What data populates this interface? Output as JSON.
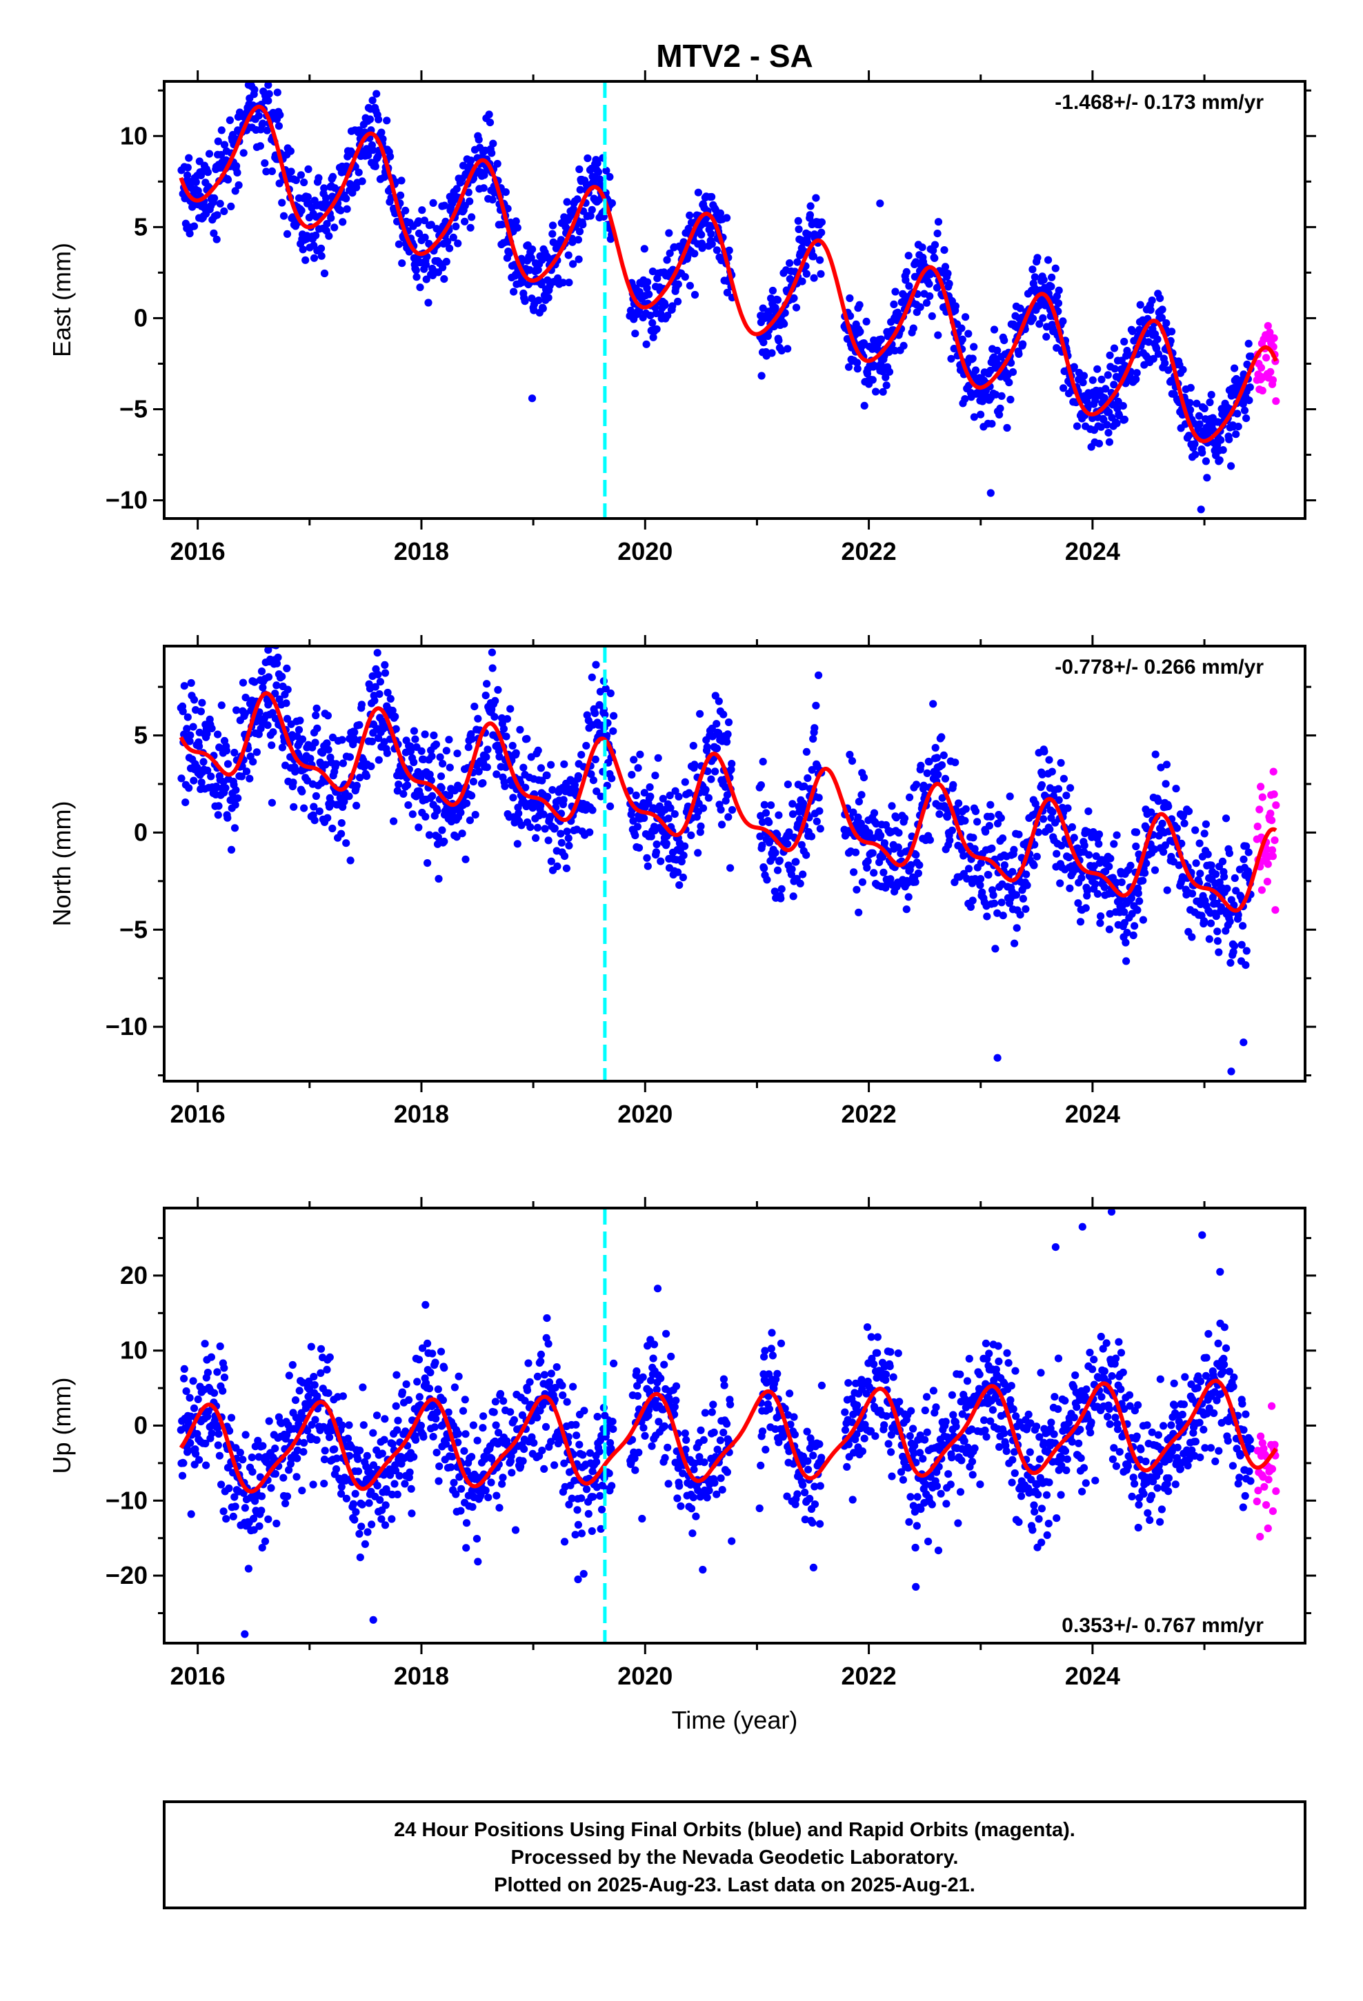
{
  "title": "MTV2 - SA",
  "xlabel": "Time (year)",
  "footer": {
    "line1": "24 Hour Positions Using Final Orbits (blue) and Rapid Orbits (magenta).",
    "line2": "Processed by the Nevada Geodetic Laboratory.",
    "line3": "Plotted on 2025-Aug-23. Last data on 2025-Aug-21."
  },
  "colors": {
    "final_orbits": "#0000ff",
    "rapid_orbits": "#ff00ff",
    "model_fit": "#ff0000",
    "event_line": "#00ffff"
  },
  "chart_data": [
    {
      "type": "scatter",
      "component": "east",
      "ylabel": "East (mm)",
      "rate_label": "-1.468+/- 0.173 mm/yr",
      "rate_position": "top-right",
      "xlim": [
        2015.7,
        2025.9
      ],
      "ylim": [
        -11,
        13
      ],
      "x_ticks": [
        2016,
        2018,
        2020,
        2022,
        2024
      ],
      "x_tick_labels": [
        "2016",
        "2018",
        "2020",
        "2022",
        "2024"
      ],
      "y_ticks": [
        -10,
        -5,
        0,
        5,
        10
      ],
      "y_tick_labels": [
        "−10",
        "−5",
        "0",
        "5",
        "10"
      ],
      "event_line_x": 2019.64,
      "grid": false,
      "model": {
        "trend_mm_per_yr": -1.468,
        "offset_mm": 3.3,
        "annual_amplitude_mm": 2.9,
        "annual_peak_year_fraction": 0.53,
        "semiannual_amplitude_mm": 0.45,
        "semiannual_peak_year_fraction": 0.1
      },
      "residual_scatter_mm": 1.1,
      "final_orbits_range": [
        2015.85,
        2025.42
      ],
      "rapid_orbits_range": [
        2025.47,
        2025.64
      ],
      "data_gaps": [
        [
          2019.72,
          2019.86
        ],
        [
          2020.78,
          2021.02
        ],
        [
          2021.58,
          2021.78
        ]
      ],
      "outliers": [
        {
          "x": 2016.63,
          "y": 12.8
        },
        {
          "x": 2016.64,
          "y": 10.7
        },
        {
          "x": 2022.1,
          "y": 6.3
        },
        {
          "x": 2018.99,
          "y": -4.4
        },
        {
          "x": 2023.09,
          "y": -9.6
        },
        {
          "x": 2024.97,
          "y": -10.5
        }
      ]
    },
    {
      "type": "scatter",
      "component": "north",
      "ylabel": "North (mm)",
      "rate_label": "-0.778+/- 0.266 mm/yr",
      "rate_position": "top-right",
      "xlim": [
        2015.7,
        2025.9
      ],
      "ylim": [
        -12.8,
        9.6
      ],
      "x_ticks": [
        2016,
        2018,
        2020,
        2022,
        2024
      ],
      "x_tick_labels": [
        "2016",
        "2018",
        "2020",
        "2022",
        "2024"
      ],
      "y_ticks": [
        -10,
        -5,
        0,
        5
      ],
      "y_tick_labels": [
        "−10",
        "−5",
        "0",
        "5"
      ],
      "event_line_x": 2019.64,
      "grid": false,
      "model": {
        "trend_mm_per_yr": -0.778,
        "offset_mm": 1.9,
        "annual_amplitude_mm": 1.9,
        "annual_peak_year_fraction": 0.65,
        "semiannual_amplitude_mm": 0.8,
        "semiannual_peak_year_fraction": 0.6
      },
      "residual_scatter_mm": 1.5,
      "final_orbits_range": [
        2015.85,
        2025.42
      ],
      "rapid_orbits_range": [
        2025.47,
        2025.64
      ],
      "data_gaps": [
        [
          2019.72,
          2019.86
        ],
        [
          2020.78,
          2021.02
        ],
        [
          2021.58,
          2021.78
        ]
      ],
      "outliers": [
        {
          "x": 2016.63,
          "y": 9.4
        },
        {
          "x": 2016.64,
          "y": 8.8
        },
        {
          "x": 2021.55,
          "y": 8.1
        },
        {
          "x": 2019.63,
          "y": 7.8
        },
        {
          "x": 2023.15,
          "y": -11.6
        },
        {
          "x": 2025.24,
          "y": -12.3
        },
        {
          "x": 2025.35,
          "y": -10.8
        }
      ]
    },
    {
      "type": "scatter",
      "component": "up",
      "ylabel": "Up (mm)",
      "rate_label": "0.353+/- 0.767 mm/yr",
      "rate_position": "bottom-right",
      "xlim": [
        2015.7,
        2025.9
      ],
      "ylim": [
        -29,
        29
      ],
      "x_ticks": [
        2016,
        2018,
        2020,
        2022,
        2024
      ],
      "x_tick_labels": [
        "2016",
        "2018",
        "2020",
        "2022",
        "2024"
      ],
      "y_ticks": [
        -20,
        -10,
        0,
        10,
        20
      ],
      "y_tick_labels": [
        "−20",
        "−10",
        "0",
        "10",
        "20"
      ],
      "event_line_x": 2019.64,
      "grid": false,
      "model": {
        "trend_mm_per_yr": 0.353,
        "offset_mm": -2.0,
        "annual_amplitude_mm": 5.3,
        "annual_peak_year_fraction": 0.05,
        "semiannual_amplitude_mm": 1.4,
        "semiannual_peak_year_fraction": 0.15
      },
      "residual_scatter_mm": 4.2,
      "final_orbits_range": [
        2015.85,
        2025.42
      ],
      "rapid_orbits_range": [
        2025.47,
        2025.64
      ],
      "data_gaps": [
        [
          2019.72,
          2019.86
        ],
        [
          2020.78,
          2021.02
        ],
        [
          2021.58,
          2021.78
        ]
      ],
      "outliers": [
        {
          "x": 2016.42,
          "y": -27.8
        },
        {
          "x": 2017.57,
          "y": -25.9
        },
        {
          "x": 2022.42,
          "y": -21.5
        },
        {
          "x": 2019.4,
          "y": -20.5
        },
        {
          "x": 2023.67,
          "y": 23.8
        },
        {
          "x": 2023.91,
          "y": 26.5
        },
        {
          "x": 2024.17,
          "y": 28.5
        },
        {
          "x": 2024.98,
          "y": 25.4
        },
        {
          "x": 2025.14,
          "y": 20.5
        }
      ]
    }
  ]
}
